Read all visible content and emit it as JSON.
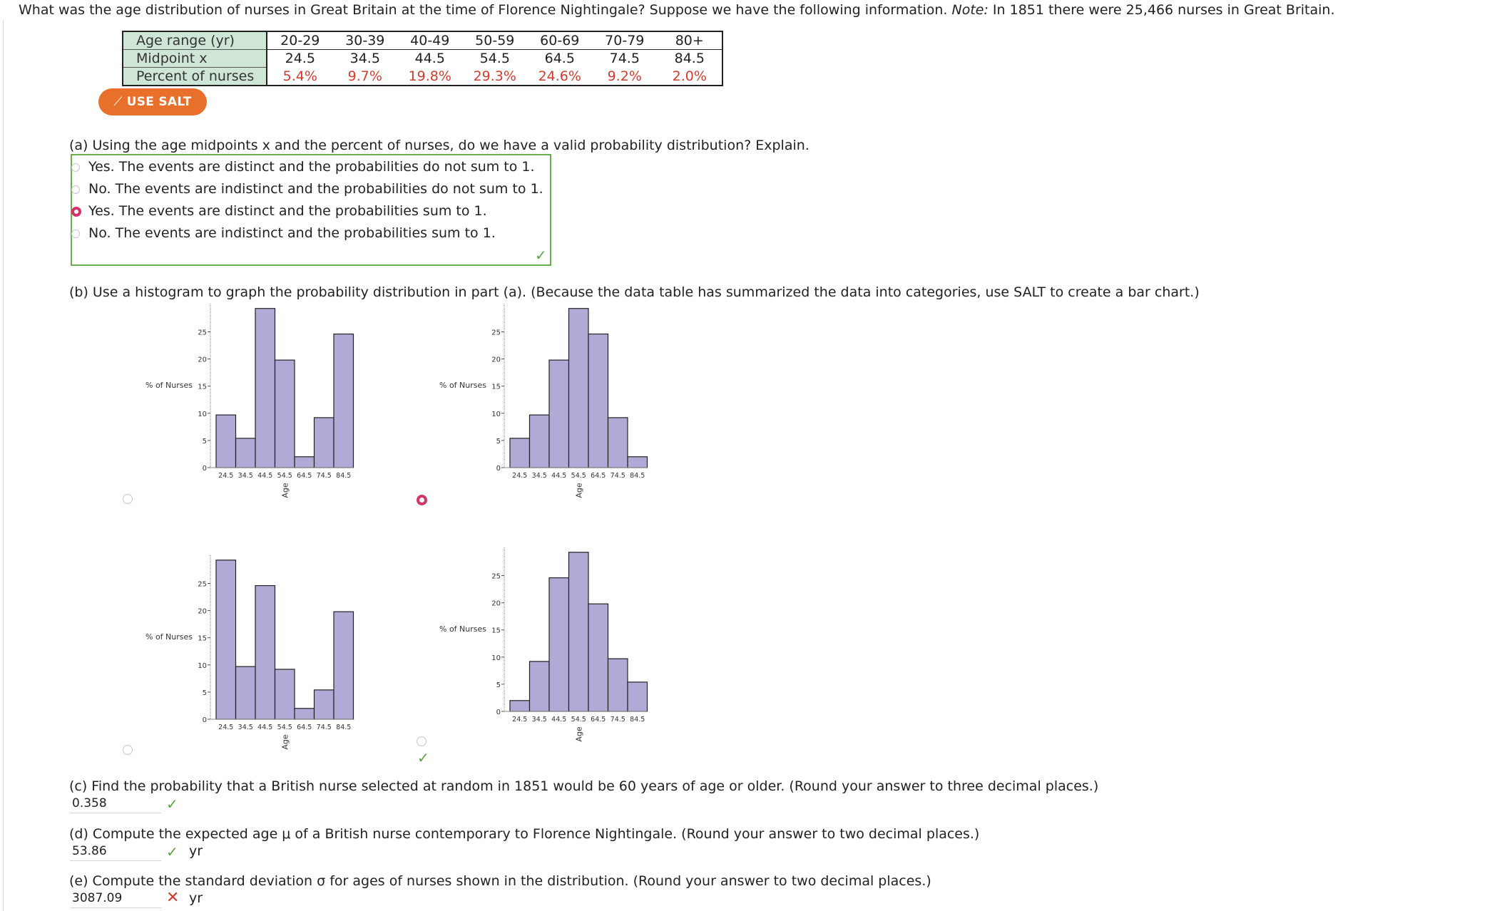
{
  "question": {
    "prefix": "What was the age distribution of nurses in Great Britain at the time of Florence Nightingale? Suppose we have the following information. ",
    "note_label": "Note:",
    "suffix": " In 1851 there were 25,466 nurses in Great Britain."
  },
  "table": {
    "row_headers": [
      "Age range (yr)",
      "Midpoint x",
      "Percent of nurses"
    ],
    "age_ranges": [
      "20-29",
      "30-39",
      "40-49",
      "50-59",
      "60-69",
      "70-79",
      "80+"
    ],
    "midpoints": [
      "24.5",
      "34.5",
      "44.5",
      "54.5",
      "64.5",
      "74.5",
      "84.5"
    ],
    "percents": [
      "5.4%",
      "9.7%",
      "19.8%",
      "29.3%",
      "24.6%",
      "9.2%",
      "2.0%"
    ]
  },
  "salt_button": {
    "label": "USE SALT",
    "icon": "chart-line-icon"
  },
  "part_a": {
    "question": "(a) Using the age midpoints x and the percent of nurses, do we have a valid probability distribution? Explain.",
    "options": [
      "Yes. The events are distinct and the probabilities do not sum to 1.",
      "No. The events are indistinct and the probabilities do not sum to 1.",
      "Yes. The events are distinct and the probabilities sum to 1.",
      "No. The events are indistinct and the probabilities sum to 1."
    ],
    "selected_index": 2,
    "result": "correct"
  },
  "part_b": {
    "question": "(b) Use a histogram to graph the probability distribution in part (a). (Because the data table has summarized the data into categories, use SALT to create a bar chart.)",
    "selected_index": 1,
    "result": "correct"
  },
  "chart_data": [
    {
      "type": "bar",
      "ylabel": "% of Nurses",
      "xlabel": "Age",
      "categories": [
        "24.5",
        "34.5",
        "44.5",
        "54.5",
        "64.5",
        "74.5",
        "84.5"
      ],
      "values": [
        9.7,
        5.4,
        29.3,
        19.8,
        2.0,
        9.2,
        24.6
      ],
      "yticks": [
        0,
        5,
        10,
        15,
        20,
        25
      ],
      "ylim": [
        0,
        30
      ]
    },
    {
      "type": "bar",
      "ylabel": "% of Nurses",
      "xlabel": "Age",
      "categories": [
        "24.5",
        "34.5",
        "44.5",
        "54.5",
        "64.5",
        "74.5",
        "84.5"
      ],
      "values": [
        5.4,
        9.7,
        19.8,
        29.3,
        24.6,
        9.2,
        2.0
      ],
      "yticks": [
        0,
        5,
        10,
        15,
        20,
        25
      ],
      "ylim": [
        0,
        30
      ]
    },
    {
      "type": "bar",
      "ylabel": "% of Nurses",
      "xlabel": "Age",
      "categories": [
        "24.5",
        "34.5",
        "44.5",
        "54.5",
        "64.5",
        "74.5",
        "84.5"
      ],
      "values": [
        29.3,
        9.7,
        24.6,
        9.2,
        2.0,
        5.4,
        19.8
      ],
      "yticks": [
        0,
        5,
        10,
        15,
        20,
        25
      ],
      "ylim": [
        0,
        30
      ]
    },
    {
      "type": "bar",
      "ylabel": "% of Nurses",
      "xlabel": "Age",
      "categories": [
        "24.5",
        "34.5",
        "44.5",
        "54.5",
        "64.5",
        "74.5",
        "84.5"
      ],
      "values": [
        2.0,
        9.2,
        24.6,
        29.3,
        19.8,
        9.7,
        5.4
      ],
      "yticks": [
        0,
        5,
        10,
        15,
        20,
        25
      ],
      "ylim": [
        0,
        30
      ]
    }
  ],
  "part_c": {
    "question": "(c) Find the probability that a British nurse selected at random in 1851 would be 60 years of age or older. (Round your answer to three decimal places.)",
    "answer": "0.358",
    "result": "correct"
  },
  "part_d": {
    "question": "(d) Compute the expected age μ of a British nurse contemporary to Florence Nightingale. (Round your answer to two decimal places.)",
    "answer": "53.86",
    "unit": "yr",
    "result": "correct"
  },
  "part_e": {
    "question": "(e) Compute the standard deviation σ for ages of nurses shown in the distribution. (Round your answer to two decimal places.)",
    "answer": "3087.09",
    "unit": "yr",
    "result": "incorrect"
  },
  "colors": {
    "bar_fill": "#b1aad6",
    "correct": "#5da33f",
    "incorrect": "#d33b2c",
    "salt": "#e8702a",
    "selected_radio": "#d6336c"
  }
}
